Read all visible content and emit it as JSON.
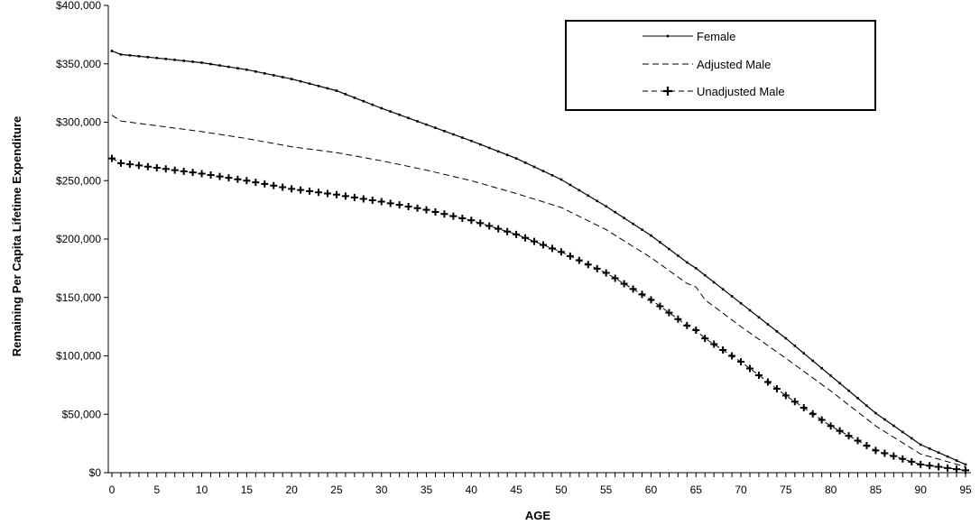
{
  "chart_data": {
    "type": "line",
    "title": "",
    "xlabel": "AGE",
    "ylabel": "Remaining Per Capita Lifetime Expenditure",
    "xlim": [
      0,
      95
    ],
    "ylim": [
      0,
      400000
    ],
    "xticks": [
      0,
      5,
      10,
      15,
      20,
      25,
      30,
      35,
      40,
      45,
      50,
      55,
      60,
      65,
      70,
      75,
      80,
      85,
      90,
      95
    ],
    "xtick_labels": [
      "0",
      "5",
      "10",
      "15",
      "20",
      "25",
      "30",
      "35",
      "40",
      "45",
      "50",
      "55",
      "60",
      "65",
      "70",
      "75",
      "80",
      "85",
      "90",
      "95"
    ],
    "yticks": [
      0,
      50000,
      100000,
      150000,
      200000,
      250000,
      300000,
      350000,
      400000
    ],
    "ytick_labels": [
      "$0",
      "$50,000",
      "$100,000",
      "$150,000",
      "$200,000",
      "$250,000",
      "$300,000",
      "$350,000",
      "$400,000"
    ],
    "grid": false,
    "legend_position": "top-right",
    "x": [
      0,
      1,
      5,
      10,
      15,
      20,
      25,
      30,
      35,
      40,
      45,
      50,
      55,
      60,
      64,
      65,
      66,
      70,
      75,
      80,
      85,
      90,
      95
    ],
    "series": [
      {
        "name": "Female",
        "style": "solid-small-markers",
        "values": [
          361000,
          358000,
          355000,
          351000,
          345000,
          337000,
          327000,
          312000,
          298000,
          284000,
          269000,
          251000,
          228000,
          203000,
          180000,
          175000,
          169000,
          145000,
          115000,
          83000,
          51000,
          24000,
          7000
        ]
      },
      {
        "name": "Adjusted Male",
        "style": "dashed",
        "values": [
          306000,
          301000,
          297000,
          292000,
          286000,
          279000,
          274000,
          267000,
          259000,
          250000,
          239000,
          227000,
          208000,
          184000,
          162000,
          159000,
          148000,
          125000,
          98000,
          70000,
          40000,
          16000,
          5000
        ]
      },
      {
        "name": "Unadjusted Male",
        "style": "dashed-plus-markers",
        "values": [
          269000,
          265000,
          261000,
          256000,
          250000,
          243000,
          238000,
          232000,
          225000,
          216000,
          204000,
          189000,
          171000,
          148000,
          126000,
          122000,
          115000,
          95000,
          66000,
          40000,
          19000,
          7000,
          2000
        ]
      }
    ]
  }
}
